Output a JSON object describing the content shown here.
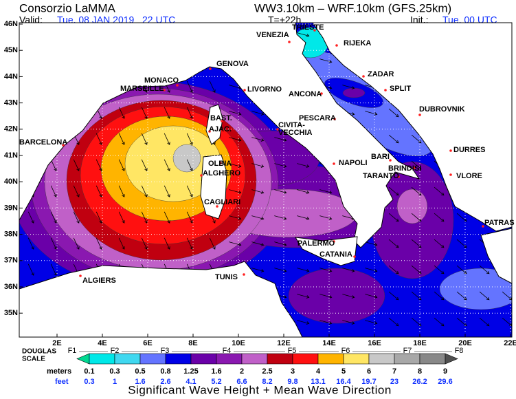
{
  "header": {
    "title": "Consorzio LaMMA",
    "valid_label": "Valid:",
    "valid_value": "Tue, 08 JAN 2019   22 UTC",
    "model": "WW3.10km – WRF.10km (GFS.25km)",
    "lead_time": "T=+22h",
    "init_label": "Init.:",
    "init_value": "Tue, 00 UTC"
  },
  "map": {
    "lat_labels": [
      "46N",
      "45N",
      "44N",
      "43N",
      "42N",
      "41N",
      "40N",
      "39N",
      "38N",
      "37N",
      "36N",
      "35N"
    ],
    "lon_labels": [
      "2E",
      "4E",
      "6E",
      "8E",
      "10E",
      "12E",
      "14E",
      "16E",
      "18E",
      "20E",
      "22E"
    ],
    "cities": [
      "TRIESTE",
      "VENEZIA",
      "RIJEKA",
      "GENOVA",
      "MONACO",
      "MARSEILLE",
      "LIVORNO",
      "ANCONA",
      "ZADAR",
      "SPLIT",
      "DUBROVNIK",
      "BAST.",
      "AJAC.",
      "PESCARA",
      "CIVITA-",
      "VECCHIA",
      "BARCELONA",
      "DURRES",
      "BARI",
      "OLBIA",
      "NAPOLI",
      "BRINDISI",
      "ALGHERO",
      "TARANTO",
      "VLORE",
      "CAGLIARI",
      "PATRAS",
      "PALERMO",
      "CATANIA",
      "ALGIERS",
      "TUNIS"
    ]
  },
  "legend": {
    "douglas_label": [
      "DOUGLAS",
      "SCALE"
    ],
    "douglas": [
      "F1",
      "F2",
      "F3",
      "F4",
      "F5",
      "F6",
      "F7",
      "F8"
    ],
    "meters_label": "meters",
    "meters": [
      "0.1",
      "0.3",
      "0.5",
      "0.8",
      "1.25",
      "1.6",
      "2",
      "2.5",
      "3",
      "4",
      "5",
      "6",
      "7",
      "8",
      "9"
    ],
    "feet_label": "feet",
    "feet": [
      "0.3",
      "1",
      "1.6",
      "2.6",
      "4.1",
      "5.2",
      "6.6",
      "8.2",
      "9.8",
      "13.1",
      "16.4",
      "19.7",
      "23",
      "26.2",
      "29.6"
    ],
    "colors": [
      "#00d890",
      "#00e8e8",
      "#40d8f0",
      "#6474ff",
      "#0000e6",
      "#6a00a8",
      "#8a18b0",
      "#c060c8",
      "#c00010",
      "#ff1010",
      "#ffb400",
      "#ffe664",
      "#c8c8c8",
      "#a8a8a8",
      "#888888",
      "#505050"
    ]
  },
  "caption": "Significant Wave Height + Mean Wave Direction"
}
